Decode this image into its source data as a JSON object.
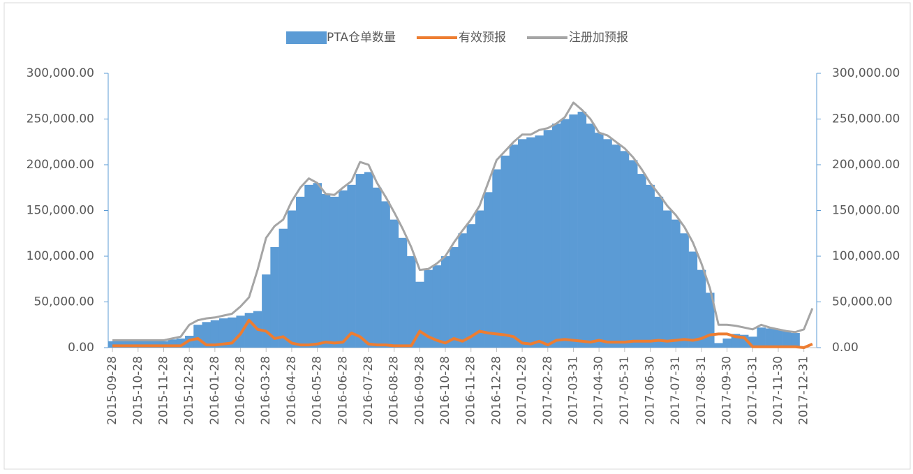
{
  "chart_data": {
    "type": "bar_line",
    "legend_position": "top",
    "categories": [
      "2015-09-28",
      null,
      null,
      "2015-10-28",
      null,
      null,
      "2015-11-28",
      null,
      null,
      "2015-12-28",
      null,
      null,
      "2016-01-28",
      null,
      null,
      "2016-02-28",
      null,
      null,
      "2016-03-28",
      null,
      null,
      "2016-04-28",
      null,
      null,
      "2016-05-28",
      null,
      null,
      "2016-06-28",
      null,
      null,
      "2016-07-28",
      null,
      null,
      "2016-08-28",
      null,
      null,
      "2016-09-28",
      null,
      null,
      "2016-10-28",
      null,
      null,
      "2016-11-28",
      null,
      null,
      "2016-12-28",
      null,
      null,
      "2017-01-28",
      null,
      null,
      "2017-02-28",
      null,
      null,
      "2017-03-31",
      null,
      null,
      "2017-04-30",
      null,
      null,
      "2017-05-31",
      null,
      null,
      "2017-06-30",
      null,
      null,
      "2017-07-31",
      null,
      null,
      "2017-08-31",
      null,
      null,
      "2017-09-30",
      null,
      null,
      "2017-10-31",
      null,
      null,
      "2017-11-30",
      null,
      null,
      "2017-12-31",
      null
    ],
    "series": [
      {
        "name": "PTA仓单数量",
        "kind": "bar",
        "color": "#5b9bd5",
        "values": [
          7000,
          7000,
          7000,
          7000,
          7000,
          7000,
          7000,
          9000,
          10000,
          13000,
          25000,
          28000,
          30000,
          32000,
          33000,
          35000,
          38000,
          40000,
          80000,
          110000,
          130000,
          150000,
          165000,
          178000,
          180000,
          168000,
          165000,
          172000,
          178000,
          190000,
          192000,
          175000,
          160000,
          140000,
          120000,
          100000,
          72000,
          85000,
          90000,
          100000,
          110000,
          125000,
          135000,
          150000,
          170000,
          195000,
          210000,
          222000,
          228000,
          230000,
          232000,
          238000,
          245000,
          250000,
          255000,
          258000,
          245000,
          235000,
          228000,
          222000,
          215000,
          205000,
          190000,
          178000,
          165000,
          150000,
          140000,
          125000,
          105000,
          85000,
          60000,
          5000,
          10000,
          15000,
          14000,
          12000,
          22000,
          21000,
          20000,
          18000,
          16000,
          0,
          0
        ]
      },
      {
        "name": "有效预报",
        "kind": "line",
        "color": "#ed7d31",
        "values": [
          2000,
          2000,
          2000,
          2000,
          2000,
          2000,
          2000,
          2000,
          2000,
          8000,
          10000,
          3000,
          3000,
          4000,
          5000,
          15000,
          30000,
          20000,
          18000,
          10000,
          12000,
          5000,
          3000,
          3000,
          4000,
          6000,
          5000,
          6000,
          16000,
          12000,
          4000,
          3000,
          3000,
          2000,
          2000,
          2000,
          18000,
          12000,
          8000,
          5000,
          10000,
          7000,
          12000,
          18000,
          16000,
          15000,
          14000,
          12000,
          5000,
          4000,
          7000,
          3000,
          8000,
          9000,
          8000,
          7000,
          6000,
          8000,
          6000,
          6000,
          6000,
          7000,
          7000,
          7000,
          8000,
          7000,
          8000,
          9000,
          8000,
          10000,
          14000,
          15000,
          15000,
          12000,
          11000,
          1000,
          1000,
          1000,
          1000,
          1000,
          1000,
          0,
          4000
        ]
      },
      {
        "name": "注册加预报",
        "kind": "line",
        "color": "#a5a5a5",
        "values": [
          8000,
          8000,
          8000,
          8000,
          8000,
          8000,
          8000,
          10000,
          12000,
          25000,
          30000,
          32000,
          33000,
          35000,
          37000,
          45000,
          55000,
          85000,
          120000,
          133000,
          140000,
          160000,
          175000,
          185000,
          180000,
          168000,
          167000,
          175000,
          182000,
          203000,
          200000,
          180000,
          165000,
          148000,
          130000,
          110000,
          85000,
          86000,
          92000,
          100000,
          115000,
          128000,
          140000,
          155000,
          180000,
          205000,
          215000,
          225000,
          233000,
          233000,
          238000,
          240000,
          245000,
          252000,
          268000,
          260000,
          250000,
          235000,
          232000,
          225000,
          218000,
          208000,
          195000,
          180000,
          168000,
          155000,
          145000,
          132000,
          115000,
          92000,
          65000,
          25000,
          25000,
          24000,
          22000,
          20000,
          25000,
          22000,
          20000,
          18000,
          17000,
          20000,
          43000
        ]
      }
    ],
    "ylim": [
      0,
      300000
    ],
    "yticks": [
      {
        "value": 0,
        "label": "0.00"
      },
      {
        "value": 50000,
        "label": "50,000.00"
      },
      {
        "value": 100000,
        "label": "100,000.00"
      },
      {
        "value": 150000,
        "label": "150,000.00"
      },
      {
        "value": 200000,
        "label": "200,000.00"
      },
      {
        "value": 250000,
        "label": "250,000.00"
      },
      {
        "value": 300000,
        "label": "300,000.00"
      }
    ],
    "y2lim": [
      0,
      300000
    ],
    "y2ticks": [
      {
        "value": 0,
        "label": "0.00"
      },
      {
        "value": 50000,
        "label": "50,000.00"
      },
      {
        "value": 100000,
        "label": "100,000.00"
      },
      {
        "value": 150000,
        "label": "150,000.00"
      },
      {
        "value": 200000,
        "label": "200,000.00"
      },
      {
        "value": 250000,
        "label": "250,000.00"
      },
      {
        "value": 300000,
        "label": "300,000.00"
      }
    ]
  }
}
